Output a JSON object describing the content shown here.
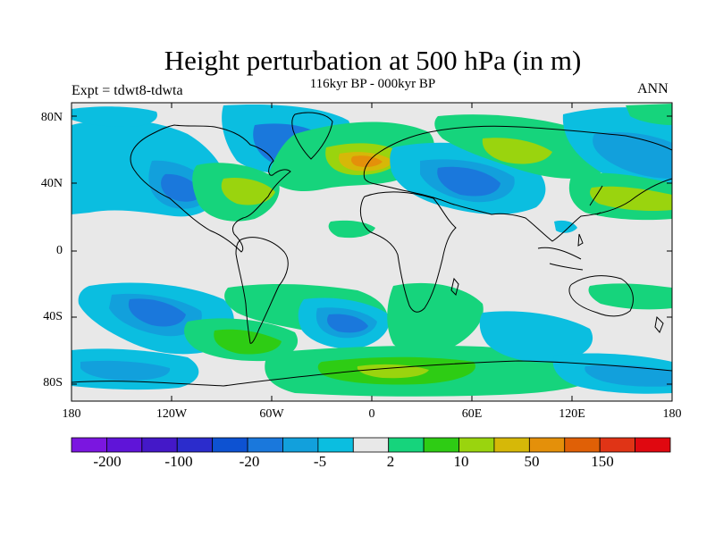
{
  "header": {
    "title": "Height perturbation at 500 hPa (in m)",
    "subtitle": "116kyr BP - 000kyr BP",
    "left_label": "Expt = tdwt8-tdwta",
    "right_label": "ANN"
  },
  "axes": {
    "y_ticks": [
      "80N",
      "40N",
      "0",
      "40S",
      "80S"
    ],
    "x_ticks": [
      "180",
      "120W",
      "60W",
      "0",
      "60E",
      "120E",
      "180"
    ]
  },
  "colorbar": {
    "colors": [
      "#7b16e0",
      "#5f14d8",
      "#4418c8",
      "#2b2ccc",
      "#0d52d2",
      "#1a78dc",
      "#12a0dc",
      "#0bbee0",
      "#e8e8e8",
      "#16d47c",
      "#2ecc14",
      "#9ad40e",
      "#d6b808",
      "#e4900a",
      "#e06006",
      "#e03416",
      "#e00810"
    ],
    "labels": [
      "-200",
      "-100",
      "-20",
      "-5",
      "2",
      "10",
      "50",
      "150"
    ]
  },
  "field_colors": {
    "neutral": "#e8e8e8",
    "cyan": "#0bbee0",
    "lightblue": "#12a0dc",
    "blue": "#1a78dc",
    "green": "#16d47c",
    "brightgreen": "#2ecc14",
    "lime": "#9ad40e",
    "gold": "#d6b808",
    "orange": "#e4900a"
  }
}
